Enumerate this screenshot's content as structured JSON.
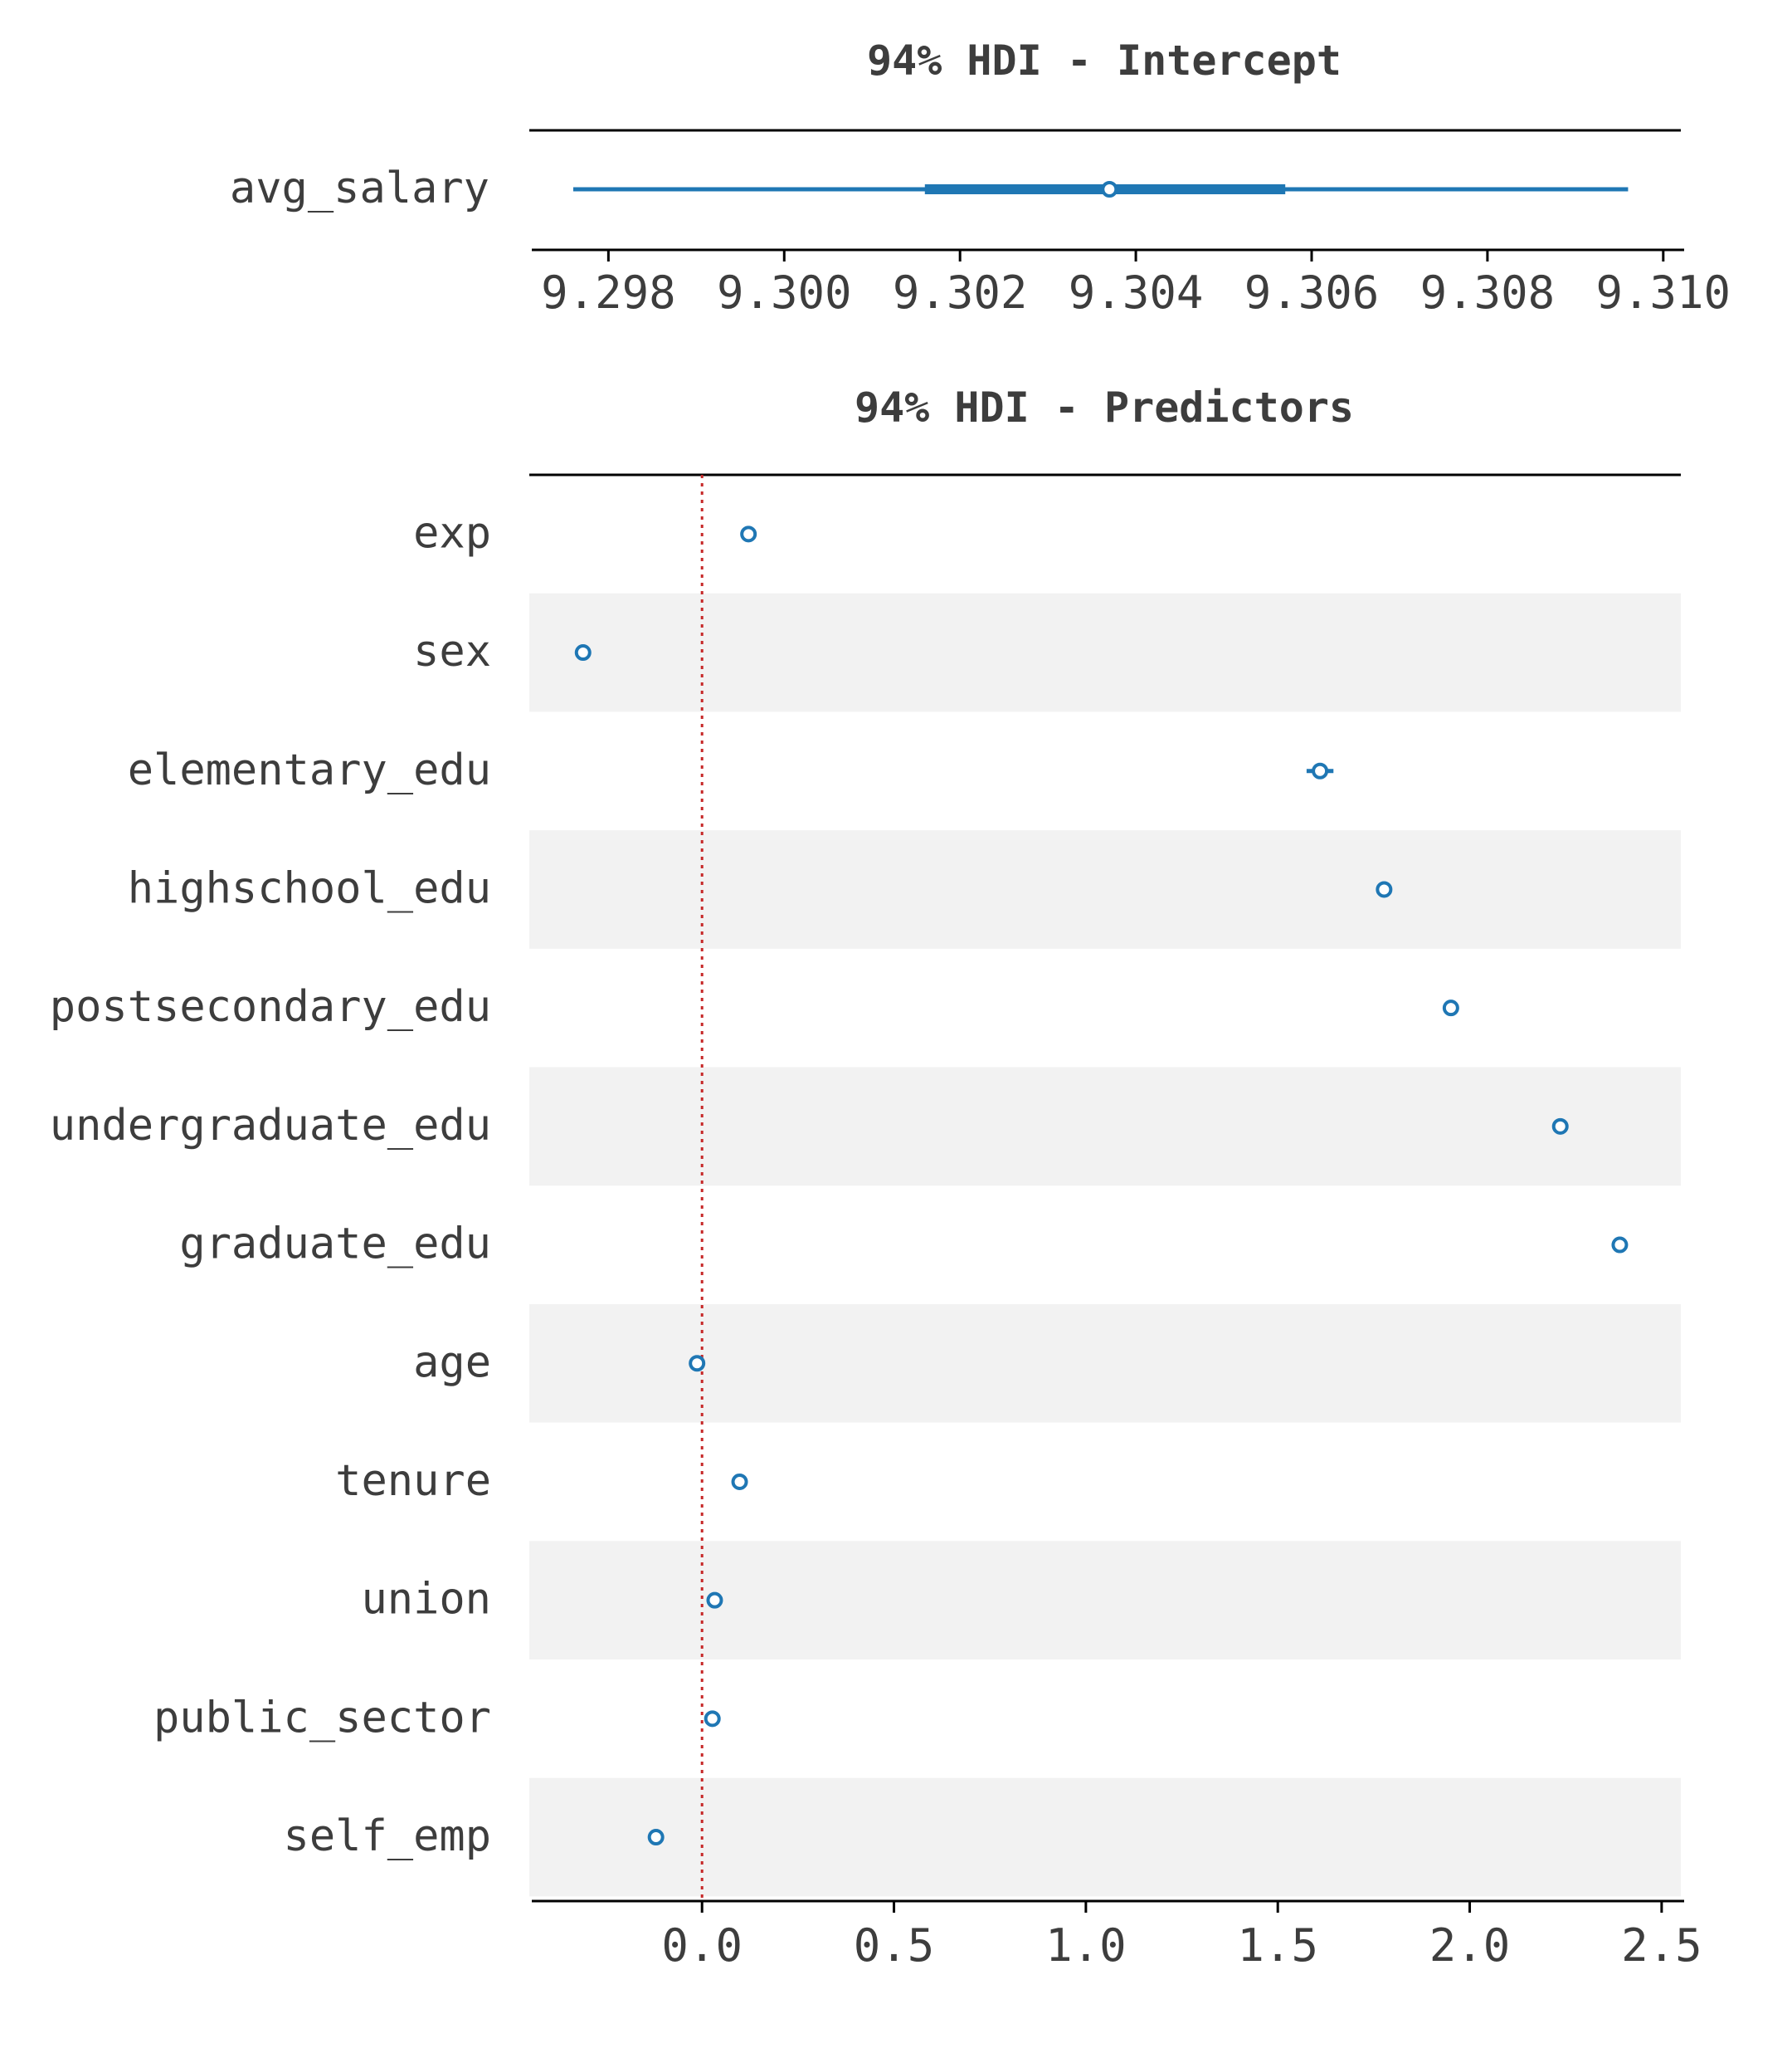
{
  "colors": {
    "series": "#1f77b4",
    "reference": "#c62828",
    "band": "#f2f2f2",
    "axis": "#000000",
    "text": "#3d3d3d"
  },
  "chart_data": [
    {
      "type": "forest",
      "title": "94% HDI - Intercept",
      "hdi_label": "94%",
      "xlim": [
        9.2971,
        9.3102
      ],
      "xticks": [
        "9.298",
        "9.300",
        "9.302",
        "9.304",
        "9.306",
        "9.308",
        "9.310"
      ],
      "xtick_values": [
        9.298,
        9.3,
        9.302,
        9.304,
        9.306,
        9.308,
        9.31
      ],
      "categories": [
        "avg_salary"
      ],
      "point": [
        9.3037
      ],
      "hdi_low": [
        9.2976
      ],
      "hdi_high": [
        9.3096
      ],
      "iqr_low": [
        9.3016
      ],
      "iqr_high": [
        9.3057
      ],
      "grid": false,
      "banded": false
    },
    {
      "type": "forest",
      "title": "94% HDI - Predictors",
      "hdi_label": "94%",
      "xlim": [
        -0.45,
        2.55
      ],
      "xticks": [
        "0.0",
        "0.5",
        "1.0",
        "1.5",
        "2.0",
        "2.5"
      ],
      "xtick_values": [
        0.0,
        0.5,
        1.0,
        1.5,
        2.0,
        2.5
      ],
      "categories": [
        "exp",
        "sex",
        "elementary_edu",
        "highschool_edu",
        "postsecondary_edu",
        "undergraduate_edu",
        "graduate_edu",
        "age",
        "tenure",
        "union",
        "public_sector",
        "self_emp"
      ],
      "point": [
        0.121,
        -0.31,
        1.61,
        1.777,
        1.951,
        2.236,
        2.391,
        -0.013,
        0.098,
        0.033,
        0.027,
        -0.12
      ],
      "hdi_low": [
        0.115,
        -0.316,
        1.575,
        1.77,
        1.944,
        2.229,
        2.384,
        -0.016,
        0.094,
        0.028,
        0.022,
        -0.126
      ],
      "hdi_high": [
        0.127,
        -0.304,
        1.645,
        1.784,
        1.958,
        2.243,
        2.398,
        -0.01,
        0.102,
        0.038,
        0.032,
        -0.114
      ],
      "reference_line": 0.0,
      "grid": false,
      "banded": true
    }
  ]
}
